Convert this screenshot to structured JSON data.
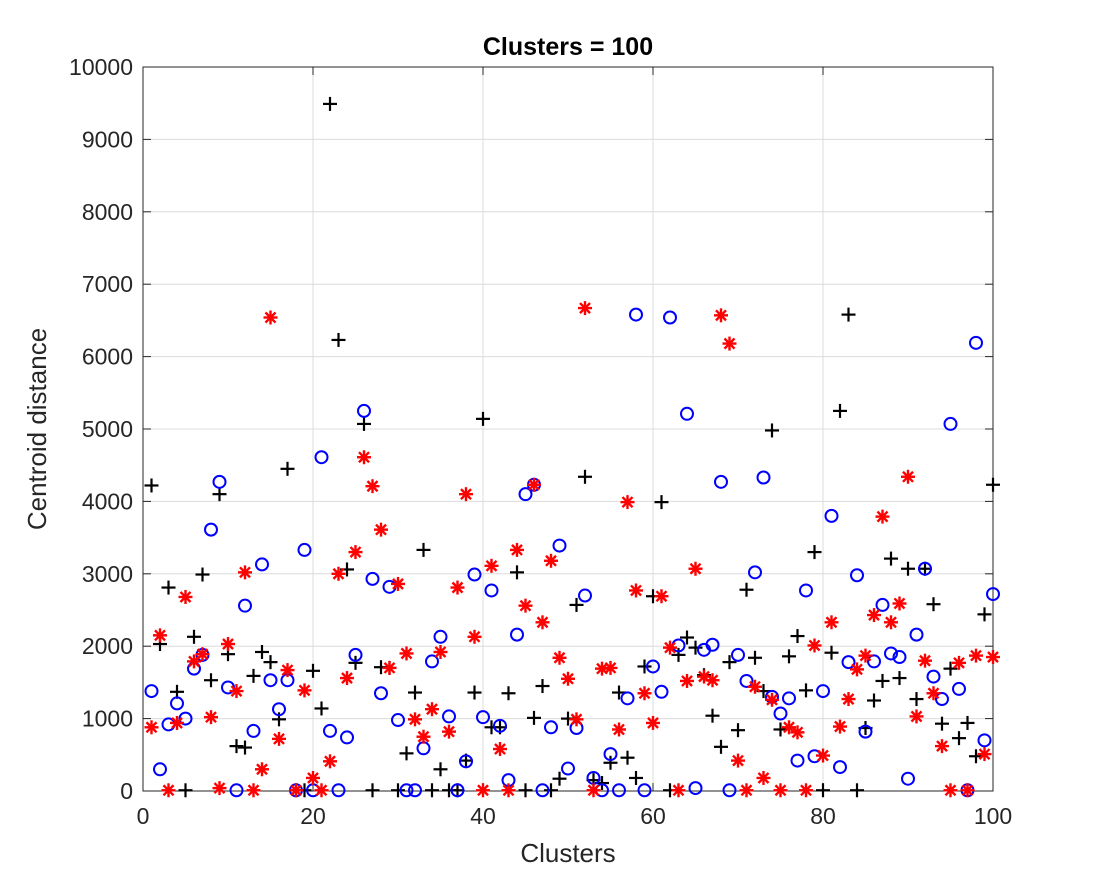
{
  "chart_data": {
    "type": "scatter",
    "title": "Clusters = 100",
    "xlabel": "Clusters",
    "ylabel": "Centroid distance",
    "xlim": [
      0,
      100
    ],
    "ylim": [
      0,
      10000
    ],
    "xticks": [
      0,
      20,
      40,
      60,
      80,
      100
    ],
    "yticks": [
      0,
      1000,
      2000,
      3000,
      4000,
      5000,
      6000,
      7000,
      8000,
      9000,
      10000
    ],
    "grid": true,
    "series": [
      {
        "marker": "plus",
        "color": "#000000",
        "points": [
          [
            1,
            4220
          ],
          [
            2,
            2030
          ],
          [
            3,
            2810
          ],
          [
            4,
            1370
          ],
          [
            5,
            10
          ],
          [
            6,
            2130
          ],
          [
            7,
            2990
          ],
          [
            8,
            1530
          ],
          [
            9,
            4100
          ],
          [
            10,
            1890
          ],
          [
            11,
            620
          ],
          [
            12,
            600
          ],
          [
            13,
            1590
          ],
          [
            14,
            1920
          ],
          [
            15,
            1780
          ],
          [
            16,
            990
          ],
          [
            17,
            4450
          ],
          [
            18,
            10
          ],
          [
            19,
            10
          ],
          [
            20,
            1660
          ],
          [
            21,
            1140
          ],
          [
            22,
            9490
          ],
          [
            23,
            6230
          ],
          [
            24,
            3060
          ],
          [
            25,
            1770
          ],
          [
            26,
            5070
          ],
          [
            27,
            10
          ],
          [
            28,
            1710
          ],
          [
            29,
            1700
          ],
          [
            30,
            10
          ],
          [
            31,
            520
          ],
          [
            32,
            1360
          ],
          [
            33,
            3330
          ],
          [
            34,
            10
          ],
          [
            35,
            300
          ],
          [
            36,
            10
          ],
          [
            37,
            10
          ],
          [
            38,
            420
          ],
          [
            39,
            1360
          ],
          [
            40,
            5140
          ],
          [
            41,
            880
          ],
          [
            42,
            880
          ],
          [
            43,
            1350
          ],
          [
            44,
            3020
          ],
          [
            45,
            10
          ],
          [
            46,
            1010
          ],
          [
            47,
            1450
          ],
          [
            48,
            10
          ],
          [
            49,
            170
          ],
          [
            50,
            1000
          ],
          [
            51,
            2570
          ],
          [
            52,
            4340
          ],
          [
            53,
            150
          ],
          [
            54,
            110
          ],
          [
            55,
            390
          ],
          [
            56,
            1360
          ],
          [
            57,
            460
          ],
          [
            58,
            180
          ],
          [
            59,
            1720
          ],
          [
            60,
            2690
          ],
          [
            61,
            3990
          ],
          [
            62,
            10
          ],
          [
            63,
            1880
          ],
          [
            64,
            2120
          ],
          [
            65,
            1980
          ],
          [
            66,
            1600
          ],
          [
            67,
            1040
          ],
          [
            68,
            610
          ],
          [
            69,
            1780
          ],
          [
            70,
            840
          ],
          [
            71,
            2780
          ],
          [
            72,
            1840
          ],
          [
            73,
            1380
          ],
          [
            74,
            4980
          ],
          [
            75,
            850
          ],
          [
            76,
            1860
          ],
          [
            77,
            2140
          ],
          [
            78,
            1390
          ],
          [
            79,
            3300
          ],
          [
            80,
            10
          ],
          [
            81,
            1910
          ],
          [
            82,
            5250
          ],
          [
            83,
            6580
          ],
          [
            84,
            10
          ],
          [
            85,
            870
          ],
          [
            86,
            1250
          ],
          [
            87,
            1520
          ],
          [
            88,
            3210
          ],
          [
            89,
            1560
          ],
          [
            90,
            3070
          ],
          [
            91,
            1270
          ],
          [
            92,
            3070
          ],
          [
            93,
            2580
          ],
          [
            94,
            930
          ],
          [
            95,
            1690
          ],
          [
            96,
            730
          ],
          [
            97,
            940
          ],
          [
            98,
            480
          ],
          [
            99,
            2440
          ],
          [
            100,
            4230
          ]
        ]
      },
      {
        "marker": "circle",
        "color": "#0000ff",
        "points": [
          [
            1,
            1380
          ],
          [
            2,
            300
          ],
          [
            3,
            920
          ],
          [
            4,
            1210
          ],
          [
            5,
            1000
          ],
          [
            6,
            1690
          ],
          [
            7,
            1880
          ],
          [
            8,
            3610
          ],
          [
            9,
            4270
          ],
          [
            10,
            1430
          ],
          [
            11,
            10
          ],
          [
            12,
            2560
          ],
          [
            13,
            830
          ],
          [
            14,
            3130
          ],
          [
            15,
            1530
          ],
          [
            16,
            1130
          ],
          [
            17,
            1530
          ],
          [
            18,
            10
          ],
          [
            19,
            3330
          ],
          [
            20,
            10
          ],
          [
            21,
            4610
          ],
          [
            22,
            830
          ],
          [
            23,
            10
          ],
          [
            24,
            740
          ],
          [
            25,
            1880
          ],
          [
            26,
            5250
          ],
          [
            27,
            2930
          ],
          [
            28,
            1350
          ],
          [
            29,
            2820
          ],
          [
            30,
            980
          ],
          [
            31,
            10
          ],
          [
            32,
            10
          ],
          [
            33,
            590
          ],
          [
            34,
            1790
          ],
          [
            35,
            2130
          ],
          [
            36,
            1030
          ],
          [
            37,
            10
          ],
          [
            38,
            410
          ],
          [
            39,
            2990
          ],
          [
            40,
            1020
          ],
          [
            41,
            2770
          ],
          [
            42,
            900
          ],
          [
            43,
            150
          ],
          [
            44,
            2160
          ],
          [
            45,
            4100
          ],
          [
            46,
            4230
          ],
          [
            47,
            10
          ],
          [
            48,
            880
          ],
          [
            49,
            3390
          ],
          [
            50,
            310
          ],
          [
            51,
            870
          ],
          [
            52,
            2700
          ],
          [
            53,
            180
          ],
          [
            54,
            10
          ],
          [
            55,
            510
          ],
          [
            56,
            10
          ],
          [
            57,
            1280
          ],
          [
            58,
            6580
          ],
          [
            59,
            10
          ],
          [
            60,
            1720
          ],
          [
            61,
            1370
          ],
          [
            62,
            6540
          ],
          [
            63,
            2010
          ],
          [
            64,
            5210
          ],
          [
            65,
            40
          ],
          [
            66,
            1950
          ],
          [
            67,
            2020
          ],
          [
            68,
            4270
          ],
          [
            69,
            10
          ],
          [
            70,
            1880
          ],
          [
            71,
            1520
          ],
          [
            72,
            3020
          ],
          [
            73,
            4330
          ],
          [
            74,
            1300
          ],
          [
            75,
            1070
          ],
          [
            76,
            1280
          ],
          [
            77,
            420
          ],
          [
            78,
            2770
          ],
          [
            79,
            480
          ],
          [
            80,
            1380
          ],
          [
            81,
            3800
          ],
          [
            82,
            330
          ],
          [
            83,
            1780
          ],
          [
            84,
            2980
          ],
          [
            85,
            820
          ],
          [
            86,
            1790
          ],
          [
            87,
            2570
          ],
          [
            88,
            1900
          ],
          [
            89,
            1850
          ],
          [
            90,
            170
          ],
          [
            91,
            2160
          ],
          [
            92,
            3070
          ],
          [
            93,
            1580
          ],
          [
            94,
            1270
          ],
          [
            95,
            5070
          ],
          [
            96,
            1410
          ],
          [
            97,
            10
          ],
          [
            98,
            6190
          ],
          [
            99,
            700
          ],
          [
            100,
            2720
          ]
        ]
      },
      {
        "marker": "asterisk",
        "color": "#ff0000",
        "points": [
          [
            1,
            880
          ],
          [
            2,
            2150
          ],
          [
            3,
            10
          ],
          [
            4,
            940
          ],
          [
            5,
            2680
          ],
          [
            6,
            1790
          ],
          [
            7,
            1890
          ],
          [
            8,
            1020
          ],
          [
            9,
            40
          ],
          [
            10,
            2030
          ],
          [
            11,
            1380
          ],
          [
            12,
            3020
          ],
          [
            13,
            10
          ],
          [
            14,
            300
          ],
          [
            15,
            6540
          ],
          [
            16,
            720
          ],
          [
            17,
            1670
          ],
          [
            18,
            10
          ],
          [
            19,
            1390
          ],
          [
            20,
            180
          ],
          [
            21,
            10
          ],
          [
            22,
            410
          ],
          [
            23,
            3000
          ],
          [
            24,
            1560
          ],
          [
            25,
            3300
          ],
          [
            26,
            4610
          ],
          [
            27,
            4210
          ],
          [
            28,
            3610
          ],
          [
            29,
            1700
          ],
          [
            30,
            2860
          ],
          [
            31,
            1900
          ],
          [
            32,
            990
          ],
          [
            33,
            750
          ],
          [
            34,
            1130
          ],
          [
            35,
            1920
          ],
          [
            36,
            820
          ],
          [
            37,
            2810
          ],
          [
            38,
            4100
          ],
          [
            39,
            2130
          ],
          [
            40,
            10
          ],
          [
            41,
            3110
          ],
          [
            42,
            580
          ],
          [
            43,
            10
          ],
          [
            44,
            3330
          ],
          [
            45,
            2560
          ],
          [
            46,
            4230
          ],
          [
            47,
            2330
          ],
          [
            48,
            3180
          ],
          [
            49,
            1840
          ],
          [
            50,
            1550
          ],
          [
            51,
            990
          ],
          [
            52,
            6670
          ],
          [
            53,
            10
          ],
          [
            54,
            1690
          ],
          [
            55,
            1700
          ],
          [
            56,
            850
          ],
          [
            57,
            3990
          ],
          [
            58,
            2770
          ],
          [
            59,
            1350
          ],
          [
            60,
            940
          ],
          [
            61,
            2690
          ],
          [
            62,
            1980
          ],
          [
            63,
            10
          ],
          [
            64,
            1520
          ],
          [
            65,
            3070
          ],
          [
            66,
            1580
          ],
          [
            67,
            1530
          ],
          [
            68,
            6570
          ],
          [
            69,
            6180
          ],
          [
            70,
            420
          ],
          [
            71,
            10
          ],
          [
            72,
            1440
          ],
          [
            73,
            180
          ],
          [
            74,
            1260
          ],
          [
            75,
            10
          ],
          [
            76,
            880
          ],
          [
            77,
            810
          ],
          [
            78,
            10
          ],
          [
            79,
            2010
          ],
          [
            80,
            490
          ],
          [
            81,
            2330
          ],
          [
            82,
            890
          ],
          [
            83,
            1270
          ],
          [
            84,
            1680
          ],
          [
            85,
            1870
          ],
          [
            86,
            2430
          ],
          [
            87,
            3790
          ],
          [
            88,
            2330
          ],
          [
            89,
            2590
          ],
          [
            90,
            4340
          ],
          [
            91,
            1030
          ],
          [
            92,
            1800
          ],
          [
            93,
            1350
          ],
          [
            94,
            620
          ],
          [
            95,
            10
          ],
          [
            96,
            1770
          ],
          [
            97,
            10
          ],
          [
            98,
            1870
          ],
          [
            99,
            510
          ],
          [
            100,
            1850
          ]
        ]
      }
    ]
  }
}
